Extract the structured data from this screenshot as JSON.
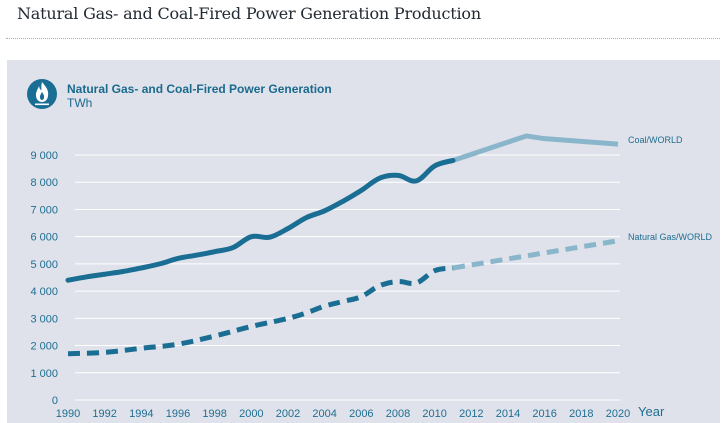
{
  "page": {
    "title": "Natural Gas- and Coal-Fired Power Generation Production"
  },
  "chart_data": {
    "type": "line",
    "title": "Natural Gas- and Coal-Fired Power Generation",
    "unit": "TWh",
    "xlabel": "Year",
    "ylabel": "TWh",
    "xlim": [
      1990,
      2020
    ],
    "ylim": [
      0,
      9000
    ],
    "grid": true,
    "icon": "flame-icon",
    "x_ticks": [
      "1990",
      "1992",
      "1994",
      "1996",
      "1998",
      "2000",
      "2002",
      "2004",
      "2006",
      "2008",
      "2010",
      "2012",
      "2014",
      "2016",
      "2018",
      "2020"
    ],
    "y_ticks": [
      "0",
      "1 000",
      "2 000",
      "3 000",
      "4 000",
      "5 000",
      "6 000",
      "7 000",
      "8 000",
      "9 000"
    ],
    "y_tick_values": [
      0,
      1000,
      2000,
      3000,
      4000,
      5000,
      6000,
      7000,
      8000,
      9000
    ],
    "colors": {
      "historical": "#1a6e93",
      "projection": "#8ab6cc",
      "panel": "#dfe2ea",
      "grid": "#ffffff"
    },
    "series": [
      {
        "name": "Coal/WORLD",
        "style": "solid",
        "historical": {
          "x": [
            1990,
            1991,
            1992,
            1993,
            1994,
            1995,
            1996,
            1997,
            1998,
            1999,
            2000,
            2001,
            2002,
            2003,
            2004,
            2005,
            2006,
            2007,
            2008,
            2009,
            2010,
            2011
          ],
          "y": [
            4400,
            4520,
            4620,
            4720,
            4850,
            5000,
            5200,
            5320,
            5450,
            5600,
            6000,
            5980,
            6300,
            6700,
            6950,
            7300,
            7700,
            8150,
            8250,
            8050,
            8600,
            8800
          ]
        },
        "projection": {
          "x": [
            2011,
            2015,
            2016,
            2020
          ],
          "y": [
            8800,
            9700,
            9600,
            9400
          ]
        }
      },
      {
        "name": "Natural Gas/WORLD",
        "style": "dashed",
        "historical": {
          "x": [
            1990,
            1992,
            1994,
            1996,
            1998,
            2000,
            2002,
            2003,
            2004,
            2005,
            2006,
            2007,
            2008,
            2009,
            2010,
            2011
          ],
          "y": [
            1700,
            1750,
            1900,
            2050,
            2350,
            2700,
            3000,
            3200,
            3450,
            3620,
            3800,
            4200,
            4350,
            4300,
            4750,
            4850
          ]
        },
        "projection": {
          "x": [
            2011,
            2020
          ],
          "y": [
            4850,
            5850
          ]
        }
      }
    ]
  }
}
